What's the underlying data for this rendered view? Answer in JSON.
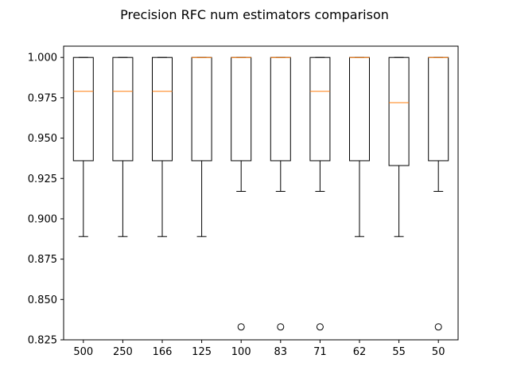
{
  "chart_data": {
    "type": "box",
    "title": "Precision RFC num estimators comparison",
    "xlabel": "",
    "ylabel": "",
    "ylim": [
      0.825,
      1.007
    ],
    "yticks": [
      "0.825",
      "0.850",
      "0.875",
      "0.900",
      "0.925",
      "0.950",
      "0.975",
      "1.000"
    ],
    "categories": [
      "500",
      "250",
      "166",
      "125",
      "100",
      "83",
      "71",
      "62",
      "55",
      "50"
    ],
    "boxes": [
      {
        "whisker_low": 0.889,
        "q1": 0.936,
        "median": 0.979,
        "q3": 1.0,
        "whisker_high": 1.0,
        "outliers": []
      },
      {
        "whisker_low": 0.889,
        "q1": 0.936,
        "median": 0.979,
        "q3": 1.0,
        "whisker_high": 1.0,
        "outliers": []
      },
      {
        "whisker_low": 0.889,
        "q1": 0.936,
        "median": 0.979,
        "q3": 1.0,
        "whisker_high": 1.0,
        "outliers": []
      },
      {
        "whisker_low": 0.889,
        "q1": 0.936,
        "median": 1.0,
        "q3": 1.0,
        "whisker_high": 1.0,
        "outliers": []
      },
      {
        "whisker_low": 0.917,
        "q1": 0.936,
        "median": 1.0,
        "q3": 1.0,
        "whisker_high": 1.0,
        "outliers": [
          0.833
        ]
      },
      {
        "whisker_low": 0.917,
        "q1": 0.936,
        "median": 1.0,
        "q3": 1.0,
        "whisker_high": 1.0,
        "outliers": [
          0.833
        ]
      },
      {
        "whisker_low": 0.917,
        "q1": 0.936,
        "median": 0.979,
        "q3": 1.0,
        "whisker_high": 1.0,
        "outliers": [
          0.833
        ]
      },
      {
        "whisker_low": 0.889,
        "q1": 0.936,
        "median": 1.0,
        "q3": 1.0,
        "whisker_high": 1.0,
        "outliers": []
      },
      {
        "whisker_low": 0.889,
        "q1": 0.933,
        "median": 0.972,
        "q3": 1.0,
        "whisker_high": 1.0,
        "outliers": []
      },
      {
        "whisker_low": 0.917,
        "q1": 0.936,
        "median": 1.0,
        "q3": 1.0,
        "whisker_high": 1.0,
        "outliers": [
          0.833
        ]
      }
    ],
    "grid": false,
    "colors": {
      "box": "#000000",
      "median": "#ff7f0e",
      "outlier": "#000000"
    }
  }
}
